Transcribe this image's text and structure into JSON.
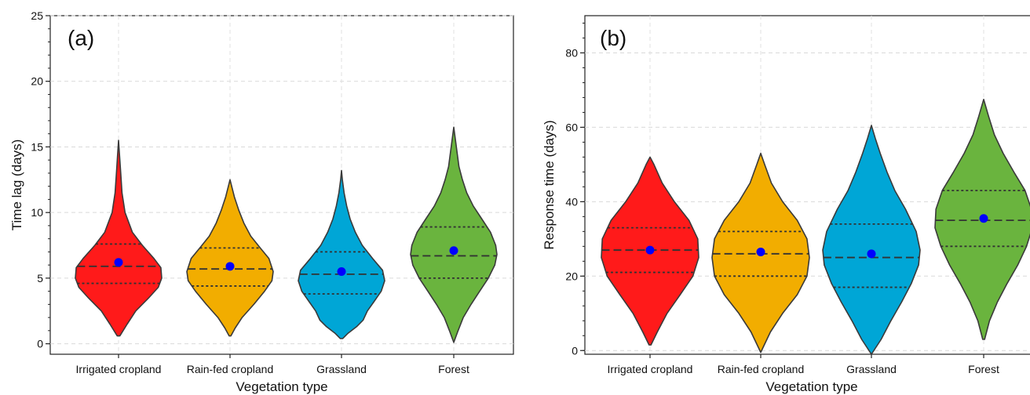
{
  "chart_data": [
    {
      "type": "violin",
      "panel_label": "(a)",
      "xlabel": "Vegetation type",
      "ylabel": "Time lag (days)",
      "ylim": [
        -0.8,
        25
      ],
      "yticks": [
        0,
        5,
        10,
        15,
        20,
        25
      ],
      "grid": true,
      "categories": [
        "Irrigated cropland",
        "Rain-fed cropland",
        "Grassland",
        "Forest"
      ],
      "colors": [
        "#ff1a1a",
        "#f2ad00",
        "#00a6d6",
        "#6ab43e"
      ],
      "mean_marker_color": "#0000ff",
      "series": [
        {
          "min": 0.6,
          "max": 15.5,
          "q1": 4.6,
          "median": 5.9,
          "q3": 7.6,
          "mean": 6.2,
          "density": [
            [
              0.6,
              0.03
            ],
            [
              1.5,
              0.2
            ],
            [
              2.5,
              0.4
            ],
            [
              3.5,
              0.7
            ],
            [
              4.3,
              0.92
            ],
            [
              5.0,
              1.0
            ],
            [
              5.8,
              0.98
            ],
            [
              6.5,
              0.82
            ],
            [
              7.5,
              0.55
            ],
            [
              8.5,
              0.32
            ],
            [
              10,
              0.15
            ],
            [
              11.5,
              0.08
            ],
            [
              13,
              0.05
            ],
            [
              14.5,
              0.02
            ],
            [
              15.5,
              0.0
            ]
          ]
        },
        {
          "min": 0.6,
          "max": 12.5,
          "q1": 4.4,
          "median": 5.7,
          "q3": 7.3,
          "mean": 5.9,
          "density": [
            [
              0.6,
              0.02
            ],
            [
              1.2,
              0.12
            ],
            [
              2,
              0.28
            ],
            [
              3,
              0.55
            ],
            [
              4,
              0.8
            ],
            [
              4.8,
              0.97
            ],
            [
              5.5,
              1.0
            ],
            [
              6.5,
              0.9
            ],
            [
              7.3,
              0.7
            ],
            [
              8.2,
              0.48
            ],
            [
              9.2,
              0.32
            ],
            [
              10.2,
              0.2
            ],
            [
              11.2,
              0.1
            ],
            [
              12.5,
              0.0
            ]
          ]
        },
        {
          "min": 0.4,
          "max": 13.2,
          "q1": 3.8,
          "median": 5.3,
          "q3": 7.0,
          "mean": 5.5,
          "density": [
            [
              0.4,
              0.03
            ],
            [
              0.8,
              0.15
            ],
            [
              1.3,
              0.35
            ],
            [
              1.8,
              0.5
            ],
            [
              2.5,
              0.6
            ],
            [
              3.2,
              0.75
            ],
            [
              4,
              0.92
            ],
            [
              4.8,
              1.0
            ],
            [
              5.6,
              0.95
            ],
            [
              6.5,
              0.72
            ],
            [
              7.5,
              0.48
            ],
            [
              8.5,
              0.32
            ],
            [
              9.5,
              0.2
            ],
            [
              10.5,
              0.12
            ],
            [
              11.5,
              0.06
            ],
            [
              12.5,
              0.02
            ],
            [
              13.2,
              0.0
            ]
          ]
        },
        {
          "min": 0.1,
          "max": 16.5,
          "q1": 5.0,
          "median": 6.7,
          "q3": 8.9,
          "mean": 7.1,
          "density": [
            [
              0.1,
              0.0
            ],
            [
              1,
              0.1
            ],
            [
              2,
              0.22
            ],
            [
              3,
              0.4
            ],
            [
              4,
              0.6
            ],
            [
              5,
              0.8
            ],
            [
              6,
              0.95
            ],
            [
              6.8,
              1.0
            ],
            [
              7.5,
              0.97
            ],
            [
              8.5,
              0.85
            ],
            [
              9.5,
              0.65
            ],
            [
              10.5,
              0.45
            ],
            [
              11.5,
              0.3
            ],
            [
              12.5,
              0.2
            ],
            [
              13.5,
              0.12
            ],
            [
              14.5,
              0.08
            ],
            [
              15.5,
              0.04
            ],
            [
              16.5,
              0.0
            ]
          ]
        }
      ]
    },
    {
      "type": "violin",
      "panel_label": "(b)",
      "xlabel": "Vegetation type",
      "ylabel": "Response time (days)",
      "ylim": [
        -1,
        90
      ],
      "yticks": [
        0,
        20,
        40,
        60,
        80
      ],
      "grid": true,
      "categories": [
        "Irrigated cropland",
        "Rain-fed cropland",
        "Grassland",
        "Forest"
      ],
      "colors": [
        "#ff1a1a",
        "#f2ad00",
        "#00a6d6",
        "#6ab43e"
      ],
      "mean_marker_color": "#0000ff",
      "series": [
        {
          "min": 1.5,
          "max": 52,
          "q1": 21,
          "median": 27,
          "q3": 33,
          "mean": 27,
          "density": [
            [
              1.5,
              0.02
            ],
            [
              5,
              0.15
            ],
            [
              10,
              0.35
            ],
            [
              15,
              0.62
            ],
            [
              20,
              0.88
            ],
            [
              25,
              1.0
            ],
            [
              30,
              0.98
            ],
            [
              35,
              0.8
            ],
            [
              40,
              0.5
            ],
            [
              45,
              0.25
            ],
            [
              50,
              0.08
            ],
            [
              52,
              0.0
            ]
          ]
        },
        {
          "min": -0.5,
          "max": 53,
          "q1": 20,
          "median": 26,
          "q3": 32,
          "mean": 26.5,
          "density": [
            [
              -0.5,
              0.0
            ],
            [
              5,
              0.2
            ],
            [
              10,
              0.45
            ],
            [
              15,
              0.75
            ],
            [
              20,
              0.95
            ],
            [
              25,
              1.0
            ],
            [
              30,
              0.95
            ],
            [
              35,
              0.75
            ],
            [
              40,
              0.45
            ],
            [
              45,
              0.22
            ],
            [
              50,
              0.08
            ],
            [
              53,
              0.0
            ]
          ]
        },
        {
          "min": -1,
          "max": 60.5,
          "q1": 17,
          "median": 25,
          "q3": 34,
          "mean": 26,
          "density": [
            [
              -1,
              0.0
            ],
            [
              3,
              0.2
            ],
            [
              8,
              0.4
            ],
            [
              13,
              0.62
            ],
            [
              18,
              0.82
            ],
            [
              23,
              0.97
            ],
            [
              27,
              1.0
            ],
            [
              32,
              0.92
            ],
            [
              38,
              0.7
            ],
            [
              43,
              0.48
            ],
            [
              48,
              0.32
            ],
            [
              53,
              0.18
            ],
            [
              57,
              0.08
            ],
            [
              60.5,
              0.0
            ]
          ]
        },
        {
          "min": 3,
          "max": 67.5,
          "q1": 28,
          "median": 35,
          "q3": 43,
          "mean": 35.5,
          "density": [
            [
              3,
              0.02
            ],
            [
              8,
              0.12
            ],
            [
              13,
              0.28
            ],
            [
              18,
              0.48
            ],
            [
              23,
              0.7
            ],
            [
              28,
              0.88
            ],
            [
              33,
              1.0
            ],
            [
              38,
              0.98
            ],
            [
              43,
              0.85
            ],
            [
              48,
              0.62
            ],
            [
              53,
              0.4
            ],
            [
              58,
              0.22
            ],
            [
              63,
              0.1
            ],
            [
              67.5,
              0.0
            ]
          ]
        }
      ]
    }
  ]
}
